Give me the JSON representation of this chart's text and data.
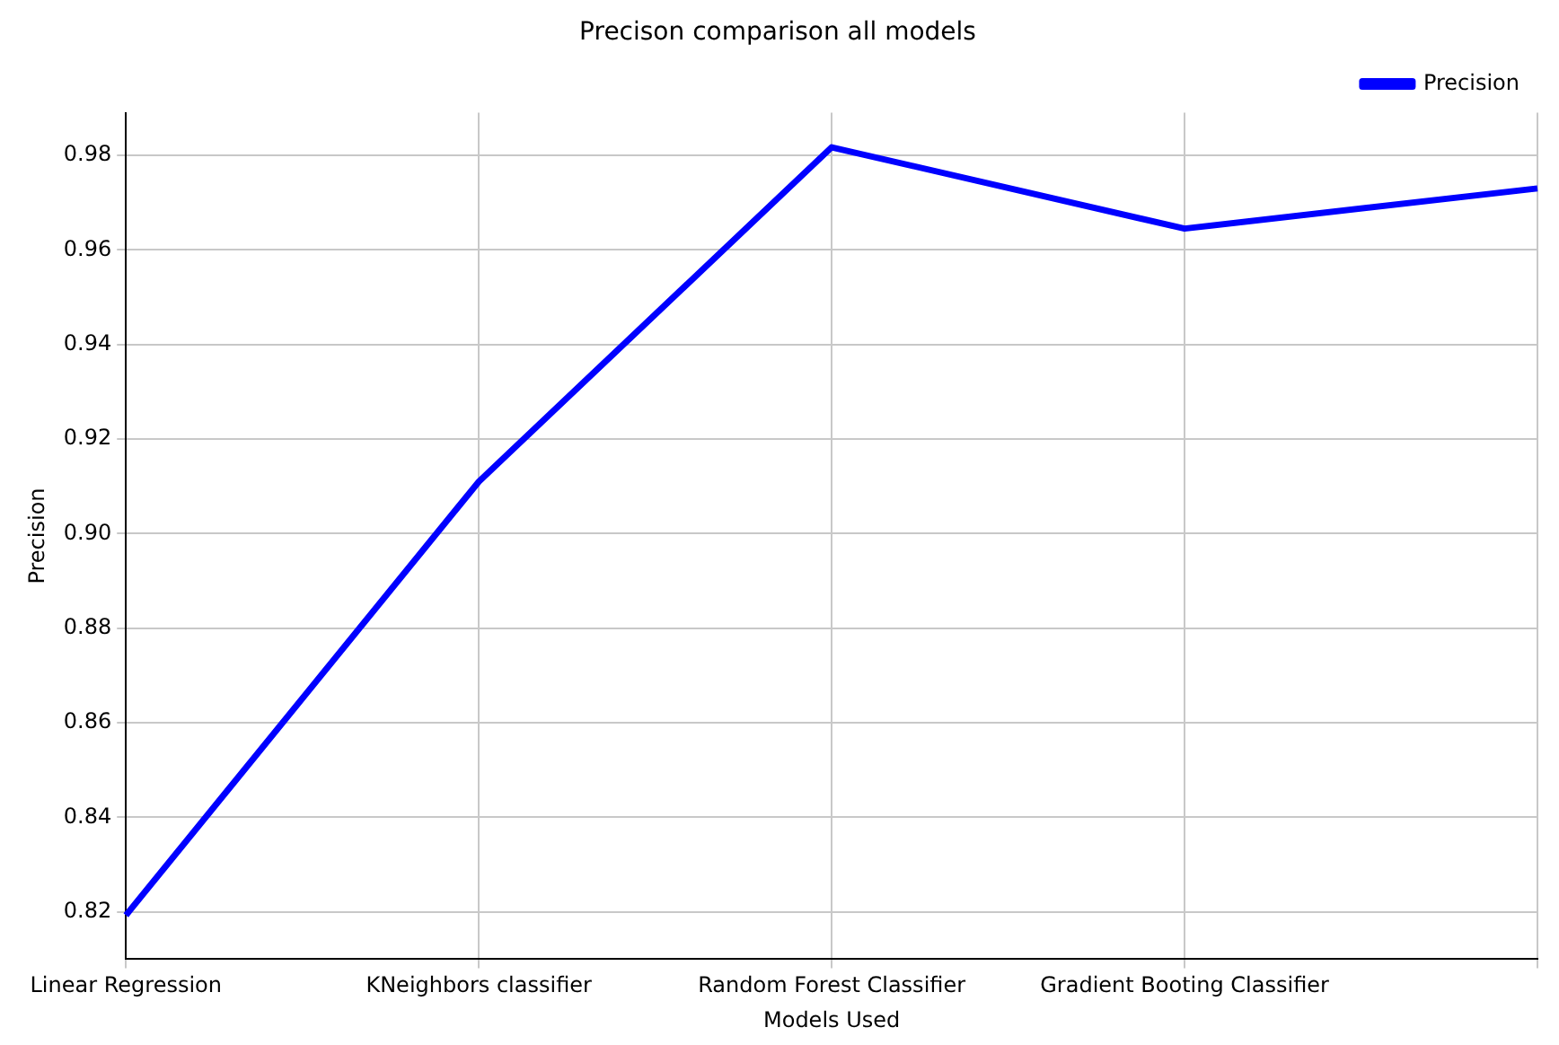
{
  "chart_data": {
    "type": "line",
    "title": "Precison comparison all models",
    "xlabel": "Models Used",
    "ylabel": "Precision",
    "categories": [
      "Linear Regression",
      "KNeighbors classifier",
      "Random Forest Classifier",
      "Gradient Booting Classifier",
      null
    ],
    "series": [
      {
        "name": "Precision",
        "color": "#0000ff",
        "values": [
          0.8193,
          0.911,
          0.9817,
          0.9645,
          0.973
        ]
      }
    ],
    "ylim": [
      0.81,
      0.989
    ],
    "yticks": [
      0.82,
      0.84,
      0.86,
      0.88,
      {
        "value": 0.9,
        "label": "0.90"
      },
      0.92,
      0.94,
      0.96,
      0.98
    ],
    "grid": true,
    "legend": "top right",
    "marker": "none",
    "line_style": "solid"
  }
}
